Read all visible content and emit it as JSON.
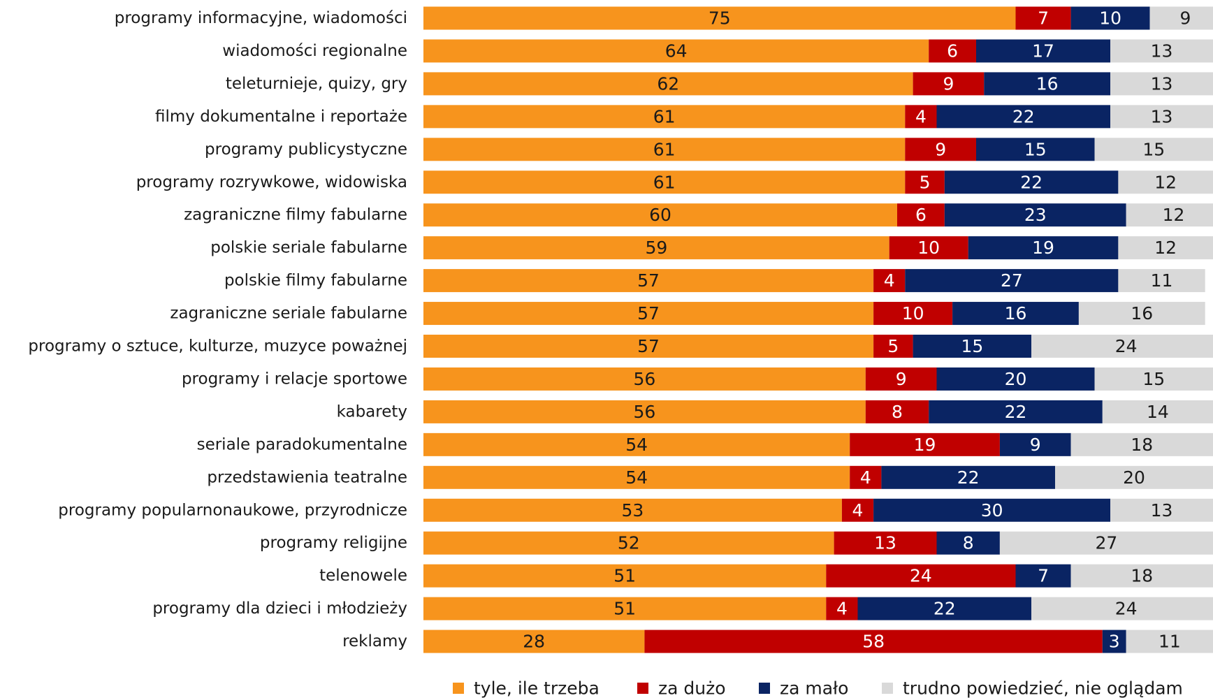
{
  "chart_data": {
    "type": "bar",
    "orientation": "horizontal",
    "stacked": true,
    "grid": false,
    "legend_position": "bottom",
    "title": "",
    "xlabel": "",
    "ylabel": "",
    "xlim": [
      0,
      100
    ],
    "categories": [
      "programy informacyjne, wiadomości",
      "wiadomości regionalne",
      "teleturnieje, quizy, gry",
      "filmy dokumentalne i reportaże",
      "programy publicystyczne",
      "programy rozrywkowe, widowiska",
      "zagraniczne filmy fabularne",
      "polskie seriale fabularne",
      "polskie filmy fabularne",
      "zagraniczne seriale fabularne",
      "programy o sztuce, kulturze, muzyce poważnej",
      "programy i relacje sportowe",
      "kabarety",
      "seriale paradokumentalne",
      "przedstawienia teatralne",
      "programy popularnonaukowe, przyrodnicze",
      "programy religijne",
      "telenowele",
      "programy dla dzieci i młodzieży",
      "reklamy"
    ],
    "series": [
      {
        "name": "tyle, ile trzeba",
        "color": "#F7941D",
        "label_color": "#1a1a1a",
        "values": [
          75,
          64,
          62,
          61,
          61,
          61,
          60,
          59,
          57,
          57,
          57,
          56,
          56,
          54,
          54,
          53,
          52,
          51,
          51,
          28
        ]
      },
      {
        "name": "za dużo",
        "color": "#C00000",
        "label_color": "#ffffff",
        "values": [
          7,
          6,
          9,
          4,
          9,
          5,
          6,
          10,
          4,
          10,
          5,
          9,
          8,
          19,
          4,
          4,
          13,
          24,
          4,
          58
        ]
      },
      {
        "name": "za mało",
        "color": "#0A2463",
        "label_color": "#ffffff",
        "values": [
          10,
          17,
          16,
          22,
          15,
          22,
          23,
          19,
          27,
          16,
          15,
          20,
          22,
          9,
          22,
          30,
          8,
          7,
          22,
          3
        ]
      },
      {
        "name": "trudno powiedzieć, nie oglądam",
        "color": "#D9D9D9",
        "label_color": "#1a1a1a",
        "values": [
          9,
          13,
          13,
          13,
          15,
          12,
          12,
          12,
          11,
          16,
          24,
          15,
          14,
          18,
          20,
          13,
          27,
          18,
          24,
          11
        ]
      }
    ]
  }
}
